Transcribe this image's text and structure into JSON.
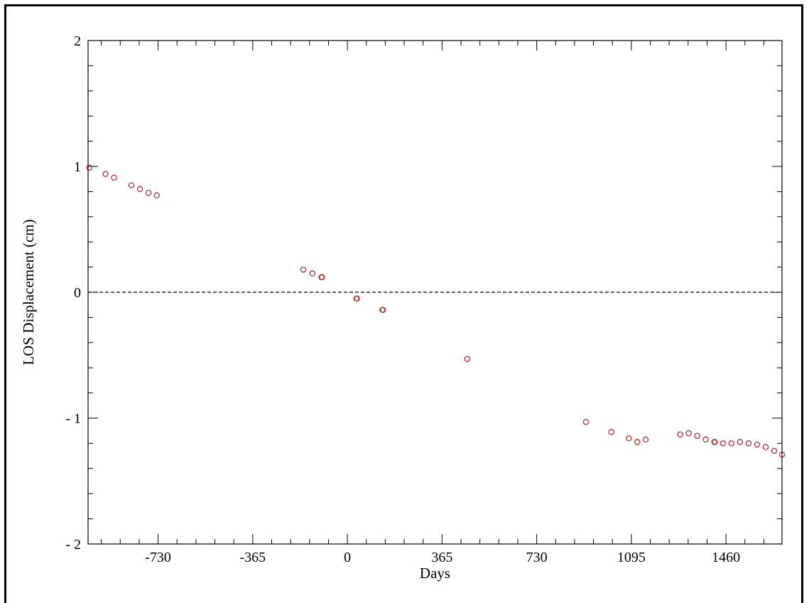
{
  "chart_data": {
    "type": "scatter",
    "title": "",
    "xlabel": "Days",
    "ylabel": "LOS Displacement (cm)",
    "xlim": [
      -1000,
      1676
    ],
    "ylim": [
      -2,
      2
    ],
    "x_ticks": [
      -730,
      -365,
      0,
      365,
      730,
      1095,
      1460
    ],
    "y_ticks": [
      -2,
      -1,
      0,
      1,
      2
    ],
    "reference_line_y": 0,
    "grid": false,
    "marker": "open-circle",
    "marker_color": "#b22222",
    "series": [
      {
        "x": [
          -995,
          -933,
          -900,
          -833,
          -800,
          -767,
          -735,
          -170,
          -135,
          -100,
          -98,
          35,
          37,
          135,
          137,
          462,
          920,
          1018,
          1085,
          1118,
          1150,
          1283,
          1316,
          1349,
          1382,
          1415,
          1417,
          1448,
          1481,
          1514,
          1547,
          1580,
          1613,
          1646,
          1676
        ],
        "y": [
          0.99,
          0.94,
          0.91,
          0.85,
          0.82,
          0.79,
          0.77,
          0.18,
          0.15,
          0.12,
          0.12,
          -0.05,
          -0.05,
          -0.14,
          -0.14,
          -0.53,
          -1.03,
          -1.11,
          -1.16,
          -1.19,
          -1.17,
          -1.13,
          -1.12,
          -1.14,
          -1.17,
          -1.19,
          -1.19,
          -1.2,
          -1.2,
          -1.19,
          -1.2,
          -1.21,
          -1.23,
          -1.26,
          -1.29
        ]
      }
    ]
  }
}
